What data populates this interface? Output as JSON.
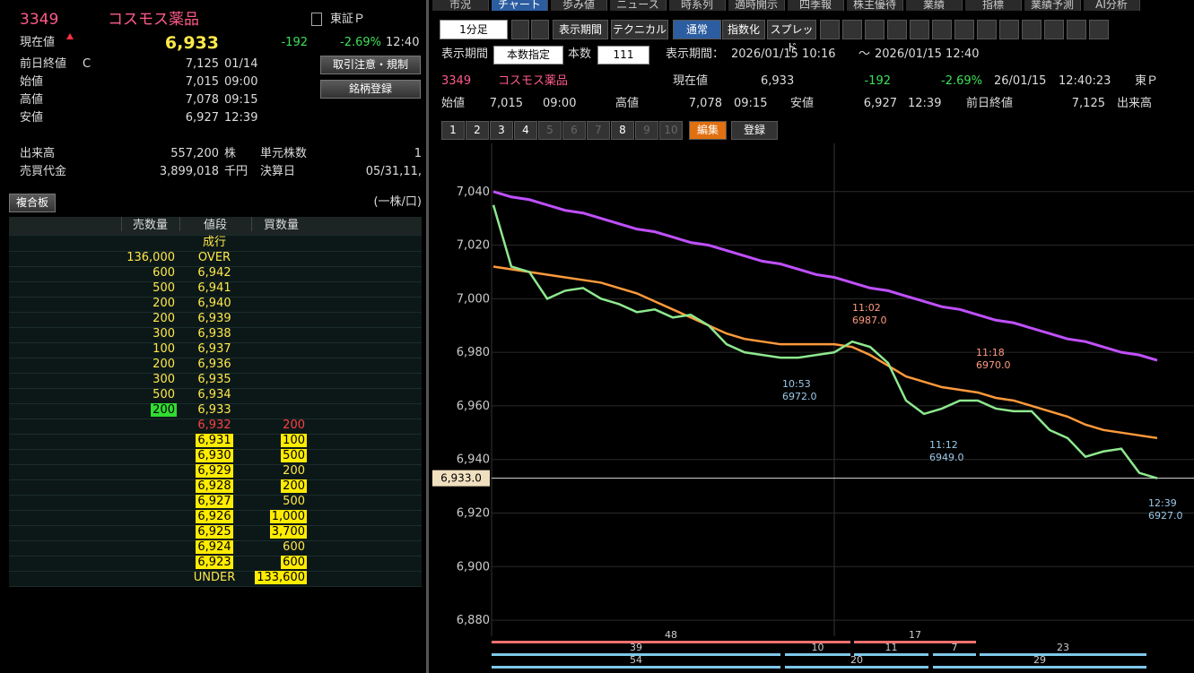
{
  "left": {
    "code": "3349",
    "name": "コスモス薬品",
    "market": "東証Ｐ",
    "current": {
      "label": "現在値",
      "price": "6,933",
      "change": "-192",
      "pct": "-2.69%",
      "time": "12:40"
    },
    "info": [
      {
        "label": "前日終値",
        "flag": "C",
        "value": "7,125",
        "time": "01/14"
      },
      {
        "label": "始値",
        "value": "7,015",
        "time": "09:00"
      },
      {
        "label": "高値",
        "value": "7,078",
        "time": "09:15"
      },
      {
        "label": "安値",
        "value": "6,927",
        "time": "12:39"
      }
    ],
    "buttons": [
      "取引注意・規制",
      "銘柄登録"
    ],
    "volume": {
      "label": "出来高",
      "value": "557,200",
      "unit": "株",
      "label2": "単元株数",
      "value2": "1"
    },
    "turnover": {
      "label": "売買代金",
      "value": "3,899,018",
      "unit": "千円",
      "label2": "決算日",
      "value2": "05/31,11,"
    },
    "board_button": "複合板",
    "unit_note": "(一株/口)",
    "board": {
      "headers": [
        "売数量",
        "値段",
        "買数量"
      ],
      "rows": [
        {
          "price": "成行"
        },
        {
          "sell": "136,000",
          "price": "OVER"
        },
        {
          "sell": "600",
          "price": "6,942"
        },
        {
          "sell": "500",
          "price": "6,941"
        },
        {
          "sell": "200",
          "price": "6,940"
        },
        {
          "sell": "200",
          "price": "6,939"
        },
        {
          "sell": "300",
          "price": "6,938"
        },
        {
          "sell": "100",
          "price": "6,937"
        },
        {
          "sell": "200",
          "price": "6,936"
        },
        {
          "sell": "300",
          "price": "6,935"
        },
        {
          "sell": "500",
          "price": "6,934"
        },
        {
          "sell": "200",
          "price": "6,933"
        },
        {
          "price": "6,932",
          "buy": "200"
        },
        {
          "price": "6,931",
          "buy": "100"
        },
        {
          "price": "6,930",
          "buy": "500"
        },
        {
          "price": "6,929",
          "buy": "200"
        },
        {
          "price": "6,928",
          "buy": "200"
        },
        {
          "price": "6,927",
          "buy": "500"
        },
        {
          "price": "6,926",
          "buy": "1,000"
        },
        {
          "price": "6,925",
          "buy": "3,700"
        },
        {
          "price": "6,924",
          "buy": "600"
        },
        {
          "price": "6,923",
          "buy": "600"
        },
        {
          "price": "UNDER",
          "buy": "133,600"
        }
      ]
    }
  },
  "right": {
    "tabs": [
      "市況",
      "チャート",
      "歩み値",
      "ニュース",
      "時系列",
      "適時開示",
      "四季報",
      "株主優待",
      "業績",
      "指標",
      "業績予測",
      "AI分析"
    ],
    "toolbar": {
      "interval": "1分足",
      "buttons": [
        "表示期間",
        "テクニカル",
        "通常",
        "指数化",
        "スプレッド"
      ]
    },
    "period": {
      "label": "表示期間",
      "mode": "本数指定",
      "count_label": "本数",
      "count": "111",
      "range_label": "表示期間：",
      "from": "2026/01/15 10:16",
      "sep": "～",
      "to": "2026/01/15 12:40"
    },
    "quote": {
      "code": "3349",
      "name": "コスモス薬品",
      "current_label": "現在値",
      "current": "6,933",
      "change": "-192",
      "pct": "-2.69%",
      "date": "26/01/15",
      "time": "12:40:23",
      "market": "東Ｐ",
      "open_label": "始値",
      "open": "7,015",
      "open_time": "09:00",
      "high_label": "高値",
      "high": "7,078",
      "high_time": "09:15",
      "low_label": "安値",
      "low": "6,927",
      "low_time": "12:39",
      "prev_label": "前日終値",
      "prev": "7,125",
      "volume_label": "出来高"
    },
    "chart_buttons": [
      "1",
      "2",
      "3",
      "4",
      "5",
      "6",
      "7",
      "8",
      "9",
      "10",
      "編集",
      "登録"
    ]
  },
  "chart_data": {
    "type": "line",
    "ylim": [
      6874,
      7058
    ],
    "yticks": [
      {
        "value": 6880,
        "label": "6,880"
      },
      {
        "value": 6900,
        "label": "6,900"
      },
      {
        "value": 6920,
        "label": "6,920"
      },
      {
        "value": 6940,
        "label": "6,940"
      },
      {
        "value": 6960,
        "label": "6,960"
      },
      {
        "value": 6980,
        "label": "6,980"
      },
      {
        "value": 7000,
        "label": "7,000"
      },
      {
        "value": 7020,
        "label": "7,020"
      },
      {
        "value": 7040,
        "label": "7,040"
      }
    ],
    "grid": true,
    "last_price": {
      "value": 6933,
      "label": "6,933.0"
    },
    "series": [
      {
        "color": "#c050ff",
        "values": [
          7040,
          7038,
          7037,
          7035,
          7033,
          7032,
          7030,
          7028,
          7026,
          7025,
          7023,
          7021,
          7020,
          7018,
          7016,
          7014,
          7013,
          7011,
          7009,
          7008,
          7006,
          7004,
          7003,
          7001,
          6999,
          6997,
          6996,
          6994,
          6992,
          6991,
          6989,
          6987,
          6985,
          6984,
          6982,
          6980,
          6979,
          6977
        ]
      },
      {
        "color": "#ff9a3c",
        "values": [
          7012,
          7011,
          7010,
          7009,
          7008,
          7007,
          7006,
          7004,
          7002,
          6999,
          6996,
          6993,
          6990,
          6987,
          6985,
          6984,
          6983,
          6983,
          6983,
          6983,
          6982,
          6979,
          6975,
          6971,
          6969,
          6967,
          6966,
          6965,
          6963,
          6962,
          6960,
          6958,
          6956,
          6953,
          6951,
          6950,
          6949,
          6948
        ]
      },
      {
        "color": "#8ee88e",
        "values": [
          7035,
          7012,
          7010,
          7000,
          7003,
          7004,
          7000,
          6998,
          6995,
          6996,
          6993,
          6994,
          6990,
          6983,
          6980,
          6979,
          6978,
          6978,
          6979,
          6980,
          6984,
          6982,
          6976,
          6962,
          6957,
          6959,
          6962,
          6962,
          6959,
          6958,
          6958,
          6951,
          6948,
          6941,
          6943,
          6944,
          6935,
          6933
        ]
      }
    ],
    "annotations": [
      {
        "time": "11:02",
        "price": "6987.0"
      },
      {
        "time": "10:53",
        "price": "6972.0"
      },
      {
        "time": "11:18",
        "price": "6970.0"
      },
      {
        "time": "11:12",
        "price": "6949.0"
      },
      {
        "time": "12:39",
        "price": "6927.0"
      }
    ],
    "bands": [
      [
        48,
        17
      ],
      [
        39,
        10,
        11,
        7,
        23
      ],
      [
        54,
        20,
        29
      ]
    ]
  }
}
